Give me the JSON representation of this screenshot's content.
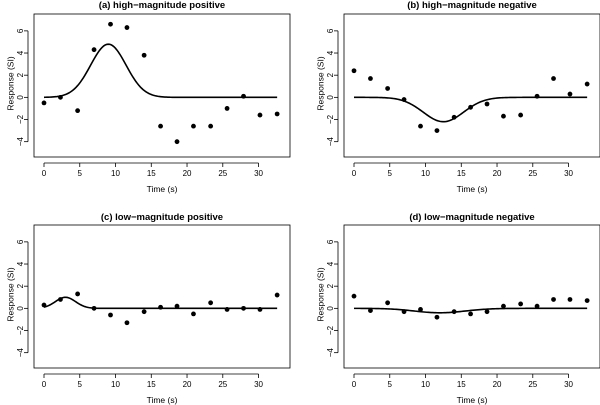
{
  "chart_data": [
    {
      "type": "scatter",
      "title": "(a) high−magnitude positive",
      "xlabel": "Time (s)",
      "ylabel": "Response (SI)",
      "xlim": [
        0,
        33
      ],
      "ylim": [
        -4.3,
        6.8
      ],
      "xticks": [
        "0",
        "5",
        "10",
        "15",
        "20",
        "25",
        "30"
      ],
      "yticks": [
        "−4",
        "−2",
        "0",
        "2",
        "4",
        "6"
      ],
      "grid": false,
      "series": [
        {
          "kind": "points",
          "x": [
            0,
            2.3,
            4.7,
            7.0,
            9.3,
            11.6,
            14.0,
            16.3,
            18.6,
            20.9,
            23.3,
            25.6,
            27.9,
            30.2,
            32.6
          ],
          "y": [
            -0.5,
            0.0,
            -1.2,
            4.3,
            6.6,
            6.3,
            3.8,
            -2.6,
            -4.0,
            -2.6,
            -2.6,
            -1.0,
            0.1,
            -1.6,
            -1.5
          ]
        },
        {
          "kind": "curve",
          "peak": 4.8,
          "peak_time": 9.0,
          "width": 3.5
        }
      ]
    },
    {
      "type": "scatter",
      "title": "(b) high−magnitude negative",
      "xlabel": "Time (s)",
      "ylabel": "Response (SI)",
      "xlim": [
        0,
        33
      ],
      "ylim": [
        -4.3,
        6.8
      ],
      "xticks": [
        "0",
        "5",
        "10",
        "15",
        "20",
        "25",
        "30"
      ],
      "yticks": [
        "−4",
        "−2",
        "0",
        "2",
        "4",
        "6"
      ],
      "grid": false,
      "series": [
        {
          "kind": "points",
          "x": [
            0,
            2.3,
            4.7,
            7.0,
            9.3,
            11.6,
            14.0,
            16.3,
            18.6,
            20.9,
            23.3,
            25.6,
            27.9,
            30.2,
            32.6
          ],
          "y": [
            2.4,
            1.7,
            0.8,
            -0.2,
            -2.6,
            -3.0,
            -1.8,
            -0.9,
            -0.6,
            -1.7,
            -1.6,
            0.1,
            1.7,
            0.3,
            1.2
          ]
        },
        {
          "kind": "curve",
          "peak": -2.2,
          "peak_time": 12.5,
          "width": 4.0
        }
      ]
    },
    {
      "type": "scatter",
      "title": "(c) low−magnitude positive",
      "xlabel": "Time (s)",
      "ylabel": "Response (SI)",
      "xlim": [
        0,
        33
      ],
      "ylim": [
        -4.3,
        6.8
      ],
      "xticks": [
        "0",
        "5",
        "10",
        "15",
        "20",
        "25",
        "30"
      ],
      "yticks": [
        "−4",
        "−2",
        "0",
        "2",
        "4",
        "6"
      ],
      "grid": false,
      "series": [
        {
          "kind": "points",
          "x": [
            0,
            2.3,
            4.7,
            7.0,
            9.3,
            11.6,
            14.0,
            16.3,
            18.6,
            20.9,
            23.3,
            25.6,
            27.9,
            30.2,
            32.6
          ],
          "y": [
            0.3,
            0.8,
            1.3,
            0.0,
            -0.6,
            -1.3,
            -0.3,
            0.1,
            0.2,
            -0.5,
            0.5,
            -0.1,
            0.0,
            -0.1,
            1.2
          ]
        },
        {
          "kind": "curve",
          "peak": 1.0,
          "peak_time": 3.0,
          "width": 2.0
        }
      ]
    },
    {
      "type": "scatter",
      "title": "(d) low−magnitude negative",
      "xlabel": "Time (s)",
      "ylabel": "Response (SI)",
      "xlim": [
        0,
        33
      ],
      "ylim": [
        -4.3,
        6.8
      ],
      "xticks": [
        "0",
        "5",
        "10",
        "15",
        "20",
        "25",
        "30"
      ],
      "yticks": [
        "−4",
        "−2",
        "0",
        "2",
        "4",
        "6"
      ],
      "grid": false,
      "series": [
        {
          "kind": "points",
          "x": [
            0,
            2.3,
            4.7,
            7.0,
            9.3,
            11.6,
            14.0,
            16.3,
            18.6,
            20.9,
            23.3,
            25.6,
            27.9,
            30.2,
            32.6
          ],
          "y": [
            1.1,
            -0.2,
            0.5,
            -0.3,
            -0.1,
            -0.8,
            -0.3,
            -0.5,
            -0.3,
            0.2,
            0.4,
            0.2,
            0.8,
            0.8,
            0.7
          ]
        },
        {
          "kind": "curve",
          "peak": -0.4,
          "peak_time": 12.0,
          "width": 5.0
        }
      ]
    }
  ]
}
